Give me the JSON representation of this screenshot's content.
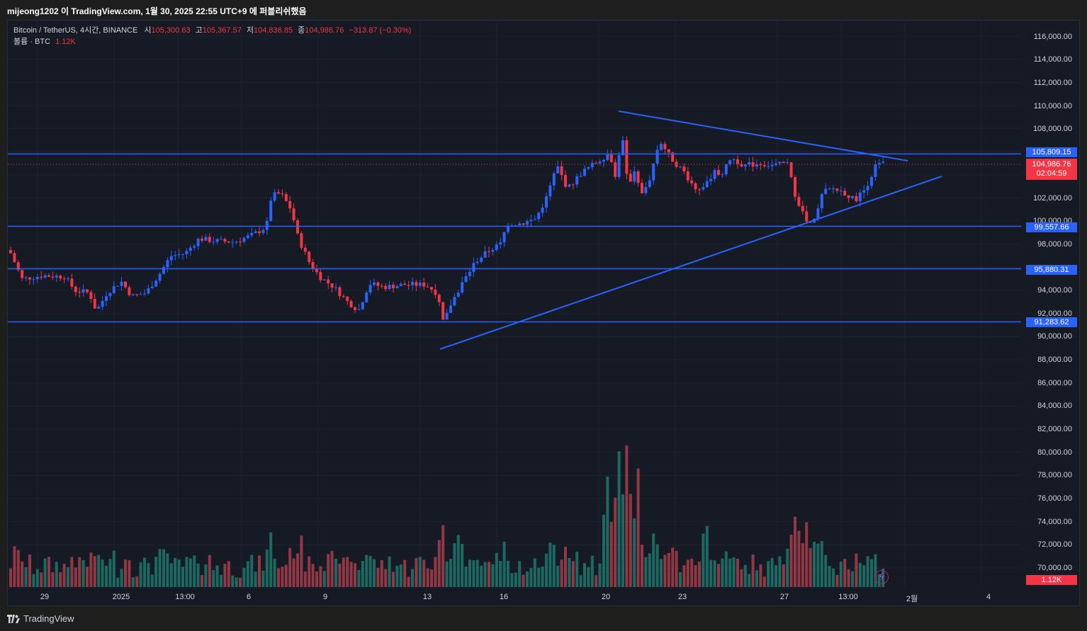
{
  "header": {
    "caption": "mijeong1202 이 TradingView.com, 1월 30, 2025 22:55 UTC+9 에 퍼블리쉬했음"
  },
  "legend": {
    "symbol": "Bitcoin / TetherUS, 4시간, BINANCE",
    "open_label": "시",
    "open_value": "105,300.63",
    "high_label": "고",
    "high_value": "105,367.57",
    "low_label": "저",
    "low_value": "104,836.85",
    "close_label": "종",
    "close_value": "104,986.76",
    "change": "−313.87 (−0.30%)",
    "volume_label": "볼륨 · BTC",
    "volume_value": "1.12K"
  },
  "price_axis": {
    "ticks": [
      "116,000.00",
      "114,000.00",
      "112,000.00",
      "110,000.00",
      "108,000.00",
      "102,000.00",
      "100,000.00",
      "98,000.00",
      "94,000.00",
      "92,000.00",
      "90,000.00",
      "88,000.00",
      "86,000.00",
      "84,000.00",
      "82,000.00",
      "80,000.00",
      "78,000.00",
      "76,000.00",
      "74,000.00",
      "72,000.00",
      "70,000.00"
    ],
    "tag_levels": [
      {
        "label": "105,809.15",
        "color": "#2962ff"
      },
      {
        "label": "99,557.66",
        "color": "#2962ff"
      },
      {
        "label": "95,880.31",
        "color": "#2962ff"
      },
      {
        "label": "91,283.62",
        "color": "#2962ff"
      }
    ],
    "current_price": "104,986.76",
    "countdown": "02:04:59",
    "volume_tag": "1.12K"
  },
  "time_axis": {
    "labels": [
      "29",
      "2025",
      "13:00",
      "6",
      "9",
      "13",
      "16",
      "20",
      "23",
      "27",
      "13:00",
      "2월",
      "4"
    ]
  },
  "colors": {
    "up": "#2962ff",
    "down": "#f23645",
    "volume_up": "#22ab94",
    "volume_down": "#f7525f",
    "hline": "#2962ff",
    "trendline": "#2962ff",
    "background": "#161a25"
  },
  "icons": {
    "logo": "tradingview-logo-icon",
    "bolt": "lightning-bolt-icon"
  },
  "footer": {
    "brand": "TradingView"
  },
  "chart_data": {
    "type": "candlestick",
    "title": "Bitcoin / TetherUS, 4시간, BINANCE",
    "ylim": [
      70000,
      116000
    ],
    "horizontal_levels": [
      105809.15,
      99557.66,
      95880.31,
      91283.62
    ],
    "trendlines": [
      {
        "name": "descending-resistance",
        "from": [
          0,
          109600
        ],
        "to": [
          1,
          105400
        ]
      },
      {
        "name": "ascending-support",
        "from": [
          0,
          89000
        ],
        "to": [
          1,
          103000
        ]
      }
    ],
    "last": {
      "open": 105300.63,
      "high": 105367.57,
      "low": 104836.85,
      "close": 104986.76,
      "change": -313.87,
      "change_pct": -0.3
    }
  }
}
